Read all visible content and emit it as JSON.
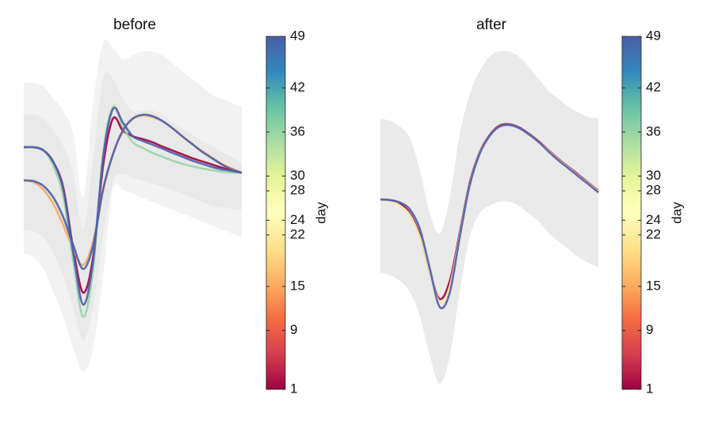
{
  "chart_data": [
    {
      "type": "line",
      "title": "before",
      "ylim": [
        0,
        100
      ],
      "bands": [
        {
          "lower": [
            38.6,
            37.4,
            34.1,
            27.4,
            20.6,
            11.7,
            4.9,
            11.7,
            31.8,
            56.5,
            56.5,
            55.4,
            54.3,
            53.1,
            52.0,
            50.9,
            49.8,
            48.7,
            47.5,
            46.4,
            45.3,
            44.2,
            43.0
          ],
          "upper": [
            86.8,
            86.8,
            85.7,
            82.3,
            78.9,
            72.2,
            54.3,
            81.2,
            98.0,
            96.9,
            93.5,
            94.6,
            95.7,
            95.7,
            94.6,
            92.4,
            90.1,
            87.9,
            85.7,
            83.4,
            82.3,
            81.2,
            80.0
          ]
        },
        {
          "lower": [
            45.3,
            44.8,
            43.0,
            38.6,
            31.8,
            22.9,
            13.9,
            22.9,
            43.0,
            58.7,
            61.0,
            59.9,
            59.2,
            58.3,
            57.4,
            56.5,
            55.4,
            54.3,
            53.1,
            52.0,
            51.6,
            51.1,
            50.9
          ],
          "upper": [
            77.8,
            77.8,
            76.7,
            73.3,
            68.8,
            61.0,
            45.3,
            65.5,
            87.9,
            87.9,
            82.3,
            78.9,
            78.9,
            78.9,
            77.8,
            75.6,
            74.0,
            72.2,
            70.4,
            68.8,
            67.3,
            65.9,
            64.3
          ]
        }
      ],
      "series": [
        {
          "day": 1,
          "values": [
            68.6,
            68.6,
            67.7,
            64.3,
            57.0,
            39.7,
            27.4,
            37.5,
            63.2,
            76.7,
            73.3,
            71.7,
            70.9,
            70.0,
            68.8,
            67.7,
            66.6,
            65.5,
            64.6,
            63.7,
            62.8,
            62.1,
            61.4
          ]
        },
        {
          "day": 15,
          "values": [
            59.2,
            58.7,
            56.5,
            52.5,
            46.4,
            39.7,
            35.2,
            41.9,
            56.5,
            66.6,
            73.3,
            76.7,
            77.6,
            77.1,
            76.0,
            74.0,
            71.7,
            69.5,
            67.5,
            65.7,
            63.9,
            62.6,
            61.4
          ]
        },
        {
          "day": 36,
          "values": [
            68.6,
            68.6,
            67.7,
            63.2,
            54.3,
            36.3,
            20.6,
            34.1,
            66.6,
            80.0,
            74.4,
            70.0,
            68.4,
            67.0,
            65.9,
            64.8,
            63.9,
            63.2,
            62.6,
            62.1,
            61.7,
            61.4,
            61.4
          ]
        },
        {
          "day": 49,
          "values": [
            68.6,
            68.6,
            67.7,
            64.3,
            56.5,
            38.6,
            24.0,
            36.3,
            65.5,
            79.4,
            75.6,
            71.7,
            70.4,
            69.3,
            68.2,
            67.0,
            65.9,
            64.8,
            63.9,
            63.0,
            62.3,
            61.9,
            61.4
          ]
        },
        {
          "day": 49,
          "values": [
            59.2,
            59.0,
            57.6,
            54.3,
            48.7,
            40.8,
            34.1,
            40.8,
            56.5,
            66.6,
            73.3,
            76.7,
            77.8,
            77.4,
            76.0,
            74.0,
            71.7,
            69.5,
            67.3,
            65.5,
            63.7,
            62.3,
            61.4
          ]
        }
      ],
      "colorbar": {
        "label": "day",
        "lim": [
          1,
          49
        ],
        "ticks": [
          1,
          9,
          15,
          22,
          24,
          28,
          30,
          36,
          42,
          49
        ],
        "colors": [
          "#9e0142",
          "#d53e4f",
          "#f46d43",
          "#fdae61",
          "#fee08b",
          "#ffffbf",
          "#e6f598",
          "#abdda4",
          "#66c2a5",
          "#3288bd",
          "#4c5ea8"
        ]
      }
    },
    {
      "type": "line",
      "title": "after",
      "ylim": [
        0,
        100
      ],
      "bands": [
        {
          "lower": [
            33.0,
            32.3,
            30.7,
            27.4,
            20.6,
            9.4,
            1.6,
            9.4,
            27.4,
            43.0,
            49.8,
            52.0,
            53.1,
            53.1,
            52.0,
            49.8,
            47.5,
            44.2,
            41.9,
            39.7,
            37.4,
            35.9,
            34.5
          ],
          "upper": [
            76.7,
            76.0,
            74.4,
            71.1,
            61.9,
            49.8,
            44.2,
            54.3,
            72.2,
            83.4,
            90.1,
            94.2,
            95.7,
            95.7,
            94.2,
            91.3,
            87.9,
            84.5,
            82.3,
            80.0,
            78.5,
            77.1,
            76.7
          ]
        }
      ],
      "series": [
        {
          "day": 1,
          "values": [
            53.8,
            53.6,
            52.5,
            49.8,
            43.5,
            33.0,
            25.6,
            30.7,
            44.2,
            58.3,
            67.0,
            71.9,
            74.7,
            75.1,
            74.2,
            72.4,
            70.2,
            67.7,
            65.2,
            63.0,
            60.8,
            58.5,
            56.3
          ]
        },
        {
          "day": 22,
          "values": [
            53.8,
            53.4,
            52.0,
            49.3,
            43.0,
            33.0,
            24.7,
            29.1,
            43.5,
            57.8,
            66.8,
            71.7,
            74.4,
            74.9,
            74.0,
            72.2,
            70.0,
            67.5,
            65.0,
            62.8,
            60.5,
            58.3,
            56.1
          ]
        },
        {
          "day": 49,
          "values": [
            53.8,
            53.6,
            52.9,
            50.9,
            45.3,
            34.1,
            23.3,
            27.4,
            43.0,
            57.6,
            66.6,
            71.7,
            74.4,
            74.9,
            74.0,
            72.2,
            70.0,
            67.3,
            64.8,
            62.6,
            60.3,
            58.1,
            55.8
          ]
        }
      ],
      "colorbar": {
        "label": "day",
        "lim": [
          1,
          49
        ],
        "ticks": [
          1,
          9,
          15,
          22,
          24,
          28,
          30,
          36,
          42,
          49
        ],
        "colors": [
          "#9e0142",
          "#d53e4f",
          "#f46d43",
          "#fdae61",
          "#fee08b",
          "#ffffbf",
          "#e6f598",
          "#abdda4",
          "#66c2a5",
          "#3288bd",
          "#4c5ea8"
        ]
      }
    }
  ]
}
